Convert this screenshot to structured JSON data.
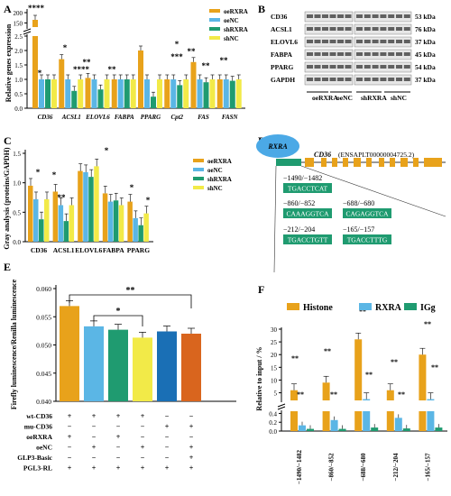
{
  "colors": {
    "orange": "#E8A21B",
    "blue": "#5BB6E5",
    "green": "#1F9B70",
    "yellow": "#F2EA48",
    "dkblue": "#1A6FB5",
    "dkorange": "#D9651E",
    "gray": "#999999",
    "ellipse": "#4BA9E6"
  },
  "panels": {
    "A": "A",
    "B": "B",
    "C": "C",
    "D": "D",
    "E": "E",
    "F": "F"
  },
  "chart_data": [
    {
      "panel": "A",
      "type": "bar",
      "ylabel": "Relative genes expression",
      "categories": [
        "CD36",
        "ACSL1",
        "ELOVL6",
        "FABPA",
        "PPARG",
        "Cpt2",
        "FAS",
        "FASN"
      ],
      "series": [
        {
          "name": "oeRXRA",
          "values": [
            165,
            1.7,
            1.05,
            1.0,
            2.0,
            1.0,
            1.6,
            1.0
          ]
        },
        {
          "name": "oeNC",
          "values": [
            1.0,
            1.0,
            1.0,
            1.0,
            1.0,
            1.0,
            1.0,
            1.0
          ]
        },
        {
          "name": "shRXRA",
          "values": [
            1.0,
            0.6,
            0.65,
            1.0,
            0.4,
            0.8,
            0.9,
            0.95
          ]
        },
        {
          "name": "shNC",
          "values": [
            1.0,
            1.0,
            1.0,
            1.0,
            1.0,
            1.0,
            1.0,
            1.0
          ]
        }
      ],
      "yticks_low": [
        "0.0",
        "0.5",
        "1.0",
        "1.5",
        "2.0",
        "2.5"
      ],
      "yticks_high": [
        "150",
        "200"
      ],
      "significance": [
        "****",
        "*",
        "**",
        "**",
        "*",
        "**",
        "**",
        "*",
        "****",
        "**",
        "***"
      ]
    },
    {
      "panel": "C",
      "type": "bar",
      "ylabel": "Gray analysis (proteins/GAPDH)",
      "categories": [
        "CD36",
        "ACSL1",
        "ELOVL6",
        "FABPA",
        "PPARG"
      ],
      "series": [
        {
          "name": "oeRXRA",
          "values": [
            0.95,
            0.85,
            1.2,
            0.82,
            0.68
          ]
        },
        {
          "name": "oeNC",
          "values": [
            0.72,
            0.62,
            1.18,
            0.68,
            0.4
          ]
        },
        {
          "name": "shRXRA",
          "values": [
            0.38,
            0.35,
            1.1,
            0.7,
            0.28
          ]
        },
        {
          "name": "shNC",
          "values": [
            0.72,
            0.62,
            1.28,
            0.62,
            0.48
          ]
        }
      ],
      "yticks": [
        "0.0",
        "0.5",
        "1.0",
        "1.5"
      ],
      "ylim": [
        0,
        1.5
      ],
      "significance": [
        "*",
        "*",
        "**",
        "*",
        "*",
        "*"
      ]
    },
    {
      "panel": "E",
      "type": "bar",
      "ylabel": "Firefly luminescence/Renilla luminescence",
      "yticks": [
        "0.040",
        "0.045",
        "0.050",
        "0.055",
        "0.060"
      ],
      "ylim": [
        0.04,
        0.06
      ],
      "values": [
        0.0569,
        0.0533,
        0.0527,
        0.0513,
        0.0524,
        0.052
      ],
      "significance": [
        "**",
        "*"
      ],
      "row_labels": [
        "wt-CD36",
        "mu-CD36",
        "oeRXRA",
        "oeNC",
        "GLP3-Basic",
        "PGL3-RL"
      ],
      "matrix": [
        [
          "+",
          "+",
          "+",
          "+",
          "−",
          "−"
        ],
        [
          "−",
          "−",
          "−",
          "−",
          "+",
          "+"
        ],
        [
          "+",
          "−",
          "+",
          "−",
          "−",
          "−"
        ],
        [
          "−",
          "+",
          "−",
          "+",
          "−",
          "+"
        ],
        [
          "−",
          "−",
          "−",
          "−",
          "−",
          "+"
        ],
        [
          "+",
          "+",
          "+",
          "+",
          "+",
          "+"
        ]
      ]
    },
    {
      "panel": "F",
      "type": "bar",
      "ylabel": "Relative to input / %",
      "categories": [
        "−1490/−1482",
        "−860/−852",
        "−688/−680",
        "−212/−204",
        "−165/−157"
      ],
      "series": [
        {
          "name": "Histone",
          "values": [
            6,
            9,
            26,
            6,
            20
          ]
        },
        {
          "name": "RXRA",
          "values": [
            0.13,
            0.25,
            2.5,
            0.3,
            2.5
          ]
        },
        {
          "name": "IGg",
          "values": [
            0.05,
            0.05,
            0.08,
            0.06,
            0.08
          ]
        }
      ],
      "yticks_low": [
        "0.0",
        "0.2",
        "0.4"
      ],
      "yticks_high": [
        "5",
        "10",
        "15",
        "20",
        "25",
        "30"
      ],
      "significance": [
        "**",
        "**",
        "**",
        "**",
        "**",
        "**",
        "**",
        "**",
        "**",
        "**"
      ]
    }
  ],
  "blot": {
    "labels": [
      "CD36",
      "ACSL1",
      "ELOVL6",
      "FABPA",
      "PPARG",
      "GAPDH"
    ],
    "sizes": [
      "53 kDa",
      "76 kDa",
      "37 kDa",
      "45 kDa",
      "54 kDa",
      "37 kDa"
    ],
    "groups": [
      "oeRXRA",
      "oeNC",
      "shRXRA",
      "shNC"
    ]
  },
  "diagram": {
    "tf": "RXRA",
    "gene": "CD36",
    "transcript": "(ENSAPLT00000004725.2)",
    "sites": [
      {
        "range": "−1490/−1482",
        "seq": "TGACCTCAT"
      },
      {
        "range": "−860/−852",
        "seq": "CAAAGGTCA"
      },
      {
        "range": "−688/−680",
        "seq": "CAGAGGTCA"
      },
      {
        "range": "−212/−204",
        "seq": "TGACCTGTT"
      },
      {
        "range": "−165/−157",
        "seq": "TGACCTTTG"
      }
    ]
  }
}
